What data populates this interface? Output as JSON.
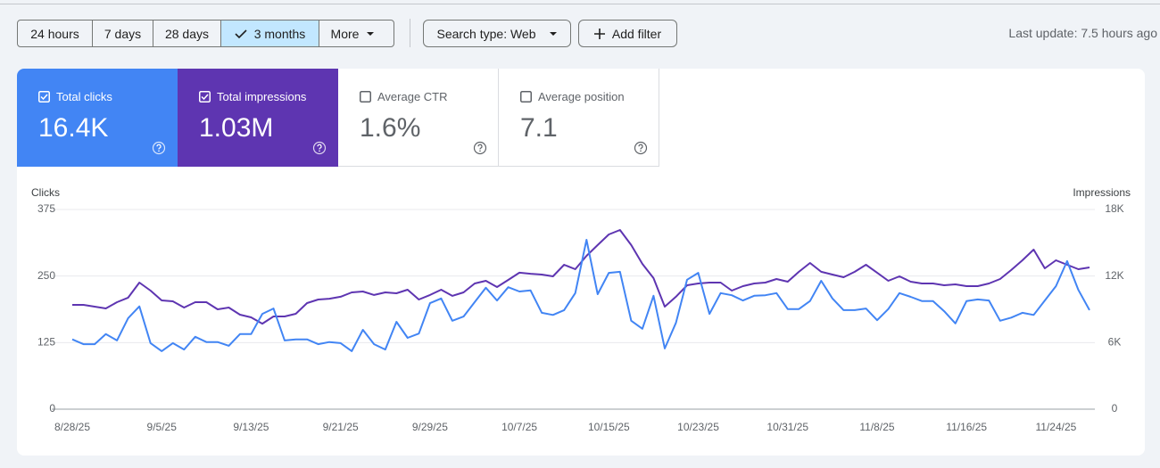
{
  "toolbar": {
    "date_ranges": [
      "24 hours",
      "7 days",
      "28 days",
      "3 months"
    ],
    "selected_range": 3,
    "more": "More",
    "search_type": "Search type: Web",
    "add_filter": "Add filter",
    "last_update": "Last update: 7.5 hours ago"
  },
  "metrics": [
    {
      "label": "Total clicks",
      "value": "16.4K",
      "checked": true
    },
    {
      "label": "Total impressions",
      "value": "1.03M",
      "checked": true
    },
    {
      "label": "Average CTR",
      "value": "1.6%",
      "checked": false
    },
    {
      "label": "Average position",
      "value": "7.1",
      "checked": false
    }
  ],
  "chart_data": {
    "type": "line",
    "categories": [
      "8/28/25",
      null,
      null,
      null,
      null,
      null,
      null,
      null,
      "9/5/25",
      null,
      null,
      null,
      null,
      null,
      null,
      null,
      "9/13/25",
      null,
      null,
      null,
      null,
      null,
      null,
      null,
      "9/21/25",
      null,
      null,
      null,
      null,
      null,
      null,
      null,
      "9/29/25",
      null,
      null,
      null,
      null,
      null,
      null,
      null,
      "10/7/25",
      null,
      null,
      null,
      null,
      null,
      null,
      null,
      "10/15/25",
      null,
      null,
      null,
      null,
      null,
      null,
      null,
      "10/23/25",
      null,
      null,
      null,
      null,
      null,
      null,
      null,
      "10/31/25",
      null,
      null,
      null,
      null,
      null,
      null,
      null,
      "11/8/25",
      null,
      null,
      null,
      null,
      null,
      null,
      null,
      "11/16/25",
      null,
      null,
      null,
      null,
      null,
      null,
      null,
      "11/24/25",
      null,
      null,
      null
    ],
    "series": [
      {
        "name": "Clicks",
        "color": "#4285f4",
        "values": [
          131,
          122,
          122,
          141,
          129,
          171,
          193,
          124,
          109,
          124,
          112,
          136,
          126,
          126,
          119,
          141,
          141,
          179,
          189,
          129,
          131,
          131,
          122,
          126,
          124,
          109,
          149,
          122,
          112,
          164,
          134,
          142,
          199,
          208,
          166,
          174,
          201,
          228,
          204,
          229,
          221,
          223,
          181,
          177,
          186,
          218,
          318,
          216,
          256,
          258,
          166,
          151,
          213,
          114,
          162,
          243,
          256,
          179,
          218,
          214,
          204,
          213,
          214,
          218,
          188,
          188,
          203,
          241,
          208,
          186,
          186,
          189,
          167,
          188,
          218,
          211,
          203,
          203,
          184,
          161,
          203,
          206,
          204,
          166,
          172,
          181,
          177,
          204,
          231,
          278,
          224,
          186
        ]
      },
      {
        "name": "Impressions",
        "color": "#5e35b1",
        "axis": "y2",
        "values": [
          9400,
          9400,
          9240,
          9080,
          9640,
          10050,
          11410,
          10690,
          9800,
          9720,
          9160,
          9640,
          9640,
          9000,
          9160,
          8520,
          8280,
          7710,
          8360,
          8360,
          8600,
          9560,
          9880,
          9960,
          10130,
          10530,
          10610,
          10290,
          10530,
          10450,
          10770,
          9880,
          10290,
          10770,
          10210,
          10530,
          11330,
          11570,
          11010,
          11650,
          12300,
          12210,
          12130,
          11970,
          13020,
          12620,
          13820,
          14790,
          15750,
          16150,
          14790,
          13100,
          11810,
          9240,
          10130,
          11170,
          11330,
          11410,
          11410,
          10690,
          11090,
          11330,
          11410,
          11730,
          11490,
          12380,
          13180,
          12380,
          12130,
          11890,
          12380,
          13020,
          12300,
          11570,
          11970,
          11490,
          11330,
          11330,
          11170,
          11250,
          11090,
          11090,
          11330,
          11730,
          12540,
          13420,
          14380,
          12700,
          13420,
          13020,
          12620,
          12780
        ]
      }
    ],
    "ylim": [
      0,
      375
    ],
    "yticks": [
      0,
      125,
      250,
      375
    ],
    "y2lim": [
      0,
      18000
    ],
    "y2ticks": [
      {
        "value": 0,
        "label": "0"
      },
      {
        "value": 6000,
        "label": "6K"
      },
      {
        "value": 12000,
        "label": "12K"
      },
      {
        "value": 18000,
        "label": "18K"
      }
    ],
    "grid": true
  }
}
